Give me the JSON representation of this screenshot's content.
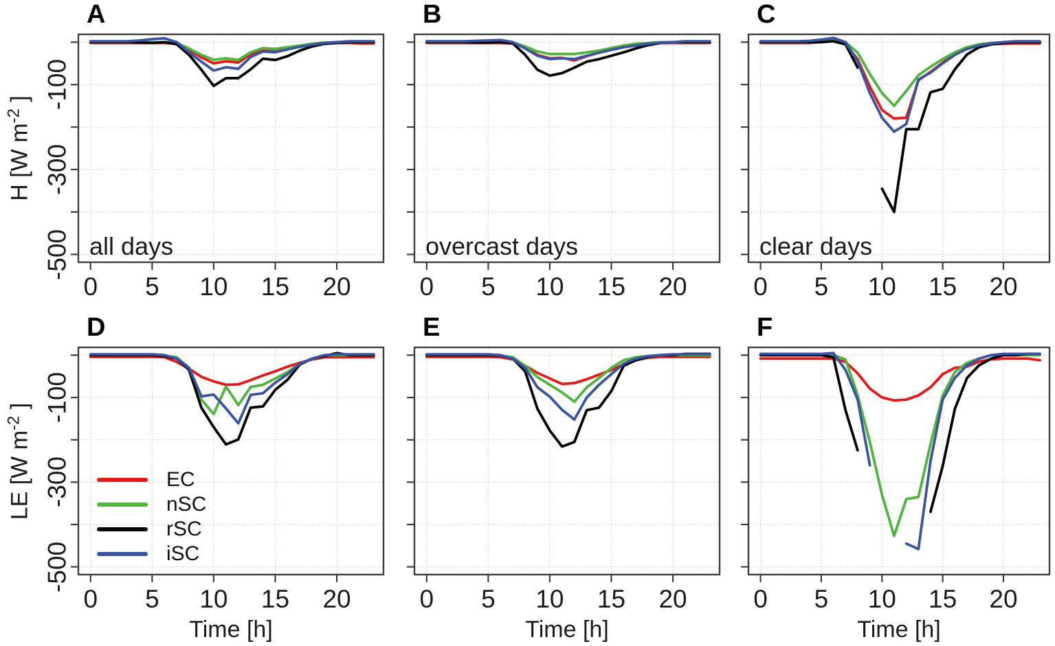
{
  "figure": {
    "background": "#ffffff",
    "series_colors": {
      "EC": "#e6191a",
      "nSC": "#4eb63c",
      "rSC": "#000000",
      "iSC": "#3b53a3"
    },
    "grid_color": "#c9c9c9",
    "frame_color": "#3d3d3d"
  },
  "axes": {
    "ylabel_top": {
      "prefix": "H [W m",
      "sup": "-2",
      "suffix": " ]"
    },
    "ylabel_bottom": {
      "prefix": "LE [W m",
      "sup": "-2",
      "suffix": " ]"
    }
  },
  "legend": {
    "items": [
      {
        "label": "EC",
        "series": "EC"
      },
      {
        "label": "nSC",
        "series": "nSC"
      },
      {
        "label": "rSC",
        "series": "rSC"
      },
      {
        "label": "iSC",
        "series": "iSC"
      }
    ]
  },
  "chart_data": [
    {
      "id": "A",
      "panel_label": "A",
      "type": "line",
      "annotation": "all days",
      "ylabel": "H [W m-2]",
      "xlabel": null,
      "x": [
        0,
        1,
        2,
        3,
        4,
        5,
        6,
        7,
        8,
        9,
        10,
        11,
        12,
        13,
        14,
        15,
        16,
        17,
        18,
        19,
        20,
        21,
        22,
        23
      ],
      "xlim": [
        -1.05,
        23.85
      ],
      "ylim": [
        -520,
        20
      ],
      "xticks": [
        0,
        5,
        10,
        15,
        20
      ],
      "yticks": [
        0,
        -100,
        -200,
        -300,
        -400,
        -500
      ],
      "ytick_labels": [
        {
          "value": -100,
          "label": "-100"
        },
        {
          "value": -300,
          "label": "-300"
        },
        {
          "value": -500,
          "label": "-500"
        }
      ],
      "series": [
        {
          "name": "EC",
          "values": [
            -2,
            -2,
            -2,
            -2,
            -2,
            -2,
            -2,
            -4,
            -18,
            -36,
            -50,
            -45,
            -48,
            -28,
            -18,
            -20,
            -15,
            -10,
            -6,
            -3,
            -2,
            -2,
            -3,
            -3
          ]
        },
        {
          "name": "nSC",
          "values": [
            0,
            0,
            0,
            0,
            0,
            0,
            0,
            -2,
            -15,
            -30,
            -42,
            -38,
            -42,
            -24,
            -14,
            -16,
            -12,
            -8,
            -4,
            -1,
            0,
            0,
            0,
            0
          ]
        },
        {
          "name": "rSC",
          "values": [
            0,
            0,
            0,
            0,
            -1,
            -2,
            0,
            -5,
            -30,
            -65,
            -103,
            -85,
            -85,
            -64,
            -39,
            -42,
            -33,
            -20,
            -10,
            -4,
            -2,
            0,
            0,
            0
          ]
        },
        {
          "name": "iSC",
          "values": [
            2,
            2,
            2,
            2,
            4,
            7,
            9,
            0,
            -24,
            -46,
            -67,
            -59,
            -63,
            -35,
            -22,
            -24,
            -17,
            -11,
            -6,
            -2,
            0,
            2,
            2,
            2
          ]
        }
      ]
    },
    {
      "id": "B",
      "panel_label": "B",
      "type": "line",
      "annotation": "overcast days",
      "ylabel": null,
      "xlabel": null,
      "x": [
        0,
        1,
        2,
        3,
        4,
        5,
        6,
        7,
        8,
        9,
        10,
        11,
        12,
        13,
        14,
        15,
        16,
        17,
        18,
        19,
        20,
        21,
        22,
        23
      ],
      "xlim": [
        -1.05,
        23.85
      ],
      "ylim": [
        -520,
        20
      ],
      "xticks": [
        0,
        5,
        10,
        15,
        20
      ],
      "yticks": [
        0,
        -100,
        -200,
        -300,
        -400,
        -500
      ],
      "ytick_labels": null,
      "series": [
        {
          "name": "EC",
          "values": [
            -2,
            -2,
            -2,
            -2,
            -2,
            -2,
            -2,
            -3,
            -12,
            -30,
            -38,
            -37,
            -43,
            -33,
            -25,
            -18,
            -12,
            -8,
            -4,
            -2,
            -2,
            -2,
            -2,
            -2
          ]
        },
        {
          "name": "nSC",
          "values": [
            0,
            0,
            0,
            0,
            0,
            0,
            1,
            -1,
            -10,
            -22,
            -28,
            -28,
            -28,
            -24,
            -20,
            -14,
            -8,
            -4,
            -2,
            0,
            0,
            0,
            0,
            0
          ]
        },
        {
          "name": "rSC",
          "values": [
            0,
            0,
            0,
            0,
            -1,
            -1,
            0,
            -3,
            -30,
            -65,
            -79,
            -73,
            -60,
            -46,
            -40,
            -32,
            -24,
            -15,
            -7,
            -2,
            0,
            0,
            0,
            0
          ]
        },
        {
          "name": "iSC",
          "values": [
            2,
            2,
            2,
            2,
            3,
            4,
            5,
            0,
            -15,
            -32,
            -40,
            -38,
            -40,
            -32,
            -25,
            -18,
            -12,
            -8,
            -4,
            -1,
            0,
            2,
            2,
            2
          ]
        }
      ]
    },
    {
      "id": "C",
      "panel_label": "C",
      "type": "line",
      "annotation": "clear days",
      "ylabel": null,
      "xlabel": null,
      "x": [
        0,
        1,
        2,
        3,
        4,
        5,
        6,
        7,
        8,
        9,
        10,
        11,
        12,
        13,
        14,
        15,
        16,
        17,
        18,
        19,
        20,
        21,
        22,
        23
      ],
      "xlim": [
        -1.05,
        23.85
      ],
      "ylim": [
        -520,
        20
      ],
      "xticks": [
        0,
        5,
        10,
        15,
        20
      ],
      "yticks": [
        0,
        -100,
        -200,
        -300,
        -400,
        -500
      ],
      "ytick_labels": null,
      "series": [
        {
          "name": "EC",
          "values": [
            -2,
            -2,
            -2,
            -2,
            -2,
            0,
            3,
            -5,
            -40,
            -105,
            -160,
            -180,
            -178,
            -90,
            -70,
            -48,
            -28,
            -15,
            -8,
            -5,
            -4,
            -3,
            -3,
            -3
          ]
        },
        {
          "name": "nSC",
          "values": [
            0,
            0,
            0,
            0,
            0,
            2,
            5,
            0,
            -25,
            -75,
            -120,
            -150,
            -115,
            -78,
            -58,
            -40,
            -24,
            -12,
            -5,
            -2,
            0,
            0,
            0,
            0
          ]
        },
        {
          "name": "rSC",
          "values": [
            0,
            0,
            0,
            0,
            0,
            0,
            2,
            -5,
            -60,
            null,
            -345,
            -400,
            -205,
            -205,
            -118,
            -110,
            -64,
            -29,
            -12,
            -5,
            -2,
            0,
            0,
            0
          ]
        },
        {
          "name": "iSC",
          "values": [
            2,
            2,
            2,
            2,
            3,
            6,
            10,
            0,
            -45,
            -120,
            -178,
            -211,
            -193,
            -88,
            -72,
            -50,
            -30,
            -16,
            -8,
            -3,
            0,
            2,
            2,
            2
          ]
        }
      ]
    },
    {
      "id": "D",
      "panel_label": "D",
      "type": "line",
      "annotation": null,
      "ylabel": "LE [W m-2]",
      "xlabel": "Time [h]",
      "x": [
        0,
        1,
        2,
        3,
        4,
        5,
        6,
        7,
        8,
        9,
        10,
        11,
        12,
        13,
        14,
        15,
        16,
        17,
        18,
        19,
        20,
        21,
        22,
        23
      ],
      "xlim": [
        -1.05,
        23.85
      ],
      "ylim": [
        -520,
        20
      ],
      "xticks": [
        0,
        5,
        10,
        15,
        20
      ],
      "yticks": [
        0,
        -100,
        -200,
        -300,
        -400,
        -500
      ],
      "ytick_labels": [
        {
          "value": -100,
          "label": "-100"
        },
        {
          "value": -300,
          "label": "-300"
        },
        {
          "value": -500,
          "label": "-500"
        }
      ],
      "series": [
        {
          "name": "EC",
          "values": [
            -4,
            -4,
            -4,
            -4,
            -4,
            -4,
            -5,
            -16,
            -32,
            -51,
            -62,
            -70,
            -69,
            -59,
            -48,
            -38,
            -27,
            -18,
            -10,
            -5,
            -5,
            -5,
            -5,
            -5
          ]
        },
        {
          "name": "nSC",
          "values": [
            0,
            0,
            0,
            0,
            0,
            0,
            -2,
            -5,
            -30,
            -105,
            -139,
            -74,
            -118,
            -75,
            -70,
            -55,
            -40,
            -20,
            -8,
            0,
            0,
            0,
            0,
            0
          ]
        },
        {
          "name": "rSC",
          "values": [
            0,
            0,
            0,
            0,
            0,
            0,
            -2,
            -8,
            -35,
            -124,
            -170,
            -211,
            -199,
            -124,
            -121,
            -82,
            -58,
            -22,
            -8,
            -2,
            5,
            0,
            0,
            0
          ]
        },
        {
          "name": "iSC",
          "values": [
            2,
            2,
            2,
            2,
            2,
            2,
            0,
            -8,
            -30,
            -97,
            -93,
            -126,
            -161,
            -94,
            -90,
            -65,
            -45,
            -20,
            -8,
            0,
            2,
            2,
            2,
            2
          ]
        }
      ]
    },
    {
      "id": "E",
      "panel_label": "E",
      "type": "line",
      "annotation": null,
      "ylabel": null,
      "xlabel": "Time [h]",
      "x": [
        0,
        1,
        2,
        3,
        4,
        5,
        6,
        7,
        8,
        9,
        10,
        11,
        12,
        13,
        14,
        15,
        16,
        17,
        18,
        19,
        20,
        21,
        22,
        23
      ],
      "xlim": [
        -1.05,
        23.85
      ],
      "ylim": [
        -520,
        20
      ],
      "xticks": [
        0,
        5,
        10,
        15,
        20
      ],
      "yticks": [
        0,
        -100,
        -200,
        -300,
        -400,
        -500
      ],
      "ytick_labels": null,
      "series": [
        {
          "name": "EC",
          "values": [
            -4,
            -4,
            -4,
            -4,
            -4,
            -4,
            -5,
            -10,
            -25,
            -42,
            -55,
            -68,
            -66,
            -57,
            -46,
            -35,
            -22,
            -12,
            -6,
            -4,
            -4,
            -4,
            -4,
            -4
          ]
        },
        {
          "name": "nSC",
          "values": [
            0,
            0,
            0,
            0,
            0,
            0,
            -1,
            -5,
            -25,
            -52,
            -70,
            -88,
            -110,
            -76,
            -54,
            -30,
            -12,
            -5,
            -2,
            0,
            0,
            0,
            0,
            0
          ]
        },
        {
          "name": "rSC",
          "values": [
            0,
            0,
            0,
            0,
            0,
            0,
            -1,
            -8,
            -38,
            -127,
            -178,
            -216,
            -205,
            -130,
            -124,
            -85,
            -25,
            -12,
            -4,
            0,
            0,
            3,
            3,
            3
          ]
        },
        {
          "name": "iSC",
          "values": [
            2,
            2,
            2,
            2,
            2,
            2,
            0,
            -8,
            -30,
            -76,
            -98,
            -129,
            -152,
            -100,
            -70,
            -45,
            -20,
            -8,
            -2,
            0,
            2,
            2,
            2,
            2
          ]
        }
      ]
    },
    {
      "id": "F",
      "panel_label": "F",
      "type": "line",
      "annotation": null,
      "ylabel": null,
      "xlabel": "Time [h]",
      "x": [
        0,
        1,
        2,
        3,
        4,
        5,
        6,
        7,
        8,
        9,
        10,
        11,
        12,
        13,
        14,
        15,
        16,
        17,
        18,
        19,
        20,
        21,
        22,
        23
      ],
      "xlim": [
        -1.05,
        23.85
      ],
      "ylim": [
        -520,
        20
      ],
      "xticks": [
        0,
        5,
        10,
        15,
        20
      ],
      "yticks": [
        0,
        -100,
        -200,
        -300,
        -400,
        -500
      ],
      "ytick_labels": null,
      "series": [
        {
          "name": "EC",
          "values": [
            -8,
            -8,
            -8,
            -8,
            -8,
            -8,
            -8,
            -16,
            -43,
            -79,
            -100,
            -107,
            -105,
            -95,
            -76,
            -45,
            -30,
            -27,
            -15,
            -10,
            -8,
            -8,
            -8,
            -12
          ]
        },
        {
          "name": "nSC",
          "values": [
            0,
            0,
            0,
            0,
            0,
            0,
            0,
            -10,
            -95,
            -205,
            -330,
            -427,
            -340,
            -335,
            -210,
            -95,
            -40,
            -18,
            -8,
            0,
            0,
            0,
            0,
            0
          ]
        },
        {
          "name": "rSC",
          "values": [
            0,
            0,
            0,
            0,
            0,
            0,
            -5,
            -130,
            -225,
            null,
            null,
            null,
            null,
            null,
            -370,
            -262,
            -127,
            -54,
            -24,
            -8,
            0,
            0,
            3,
            3
          ]
        },
        {
          "name": "iSC",
          "values": [
            3,
            3,
            3,
            3,
            3,
            3,
            5,
            -35,
            -105,
            -260,
            null,
            null,
            -445,
            -458,
            -250,
            -105,
            -54,
            -24,
            -8,
            0,
            3,
            3,
            3,
            3
          ]
        }
      ]
    }
  ]
}
